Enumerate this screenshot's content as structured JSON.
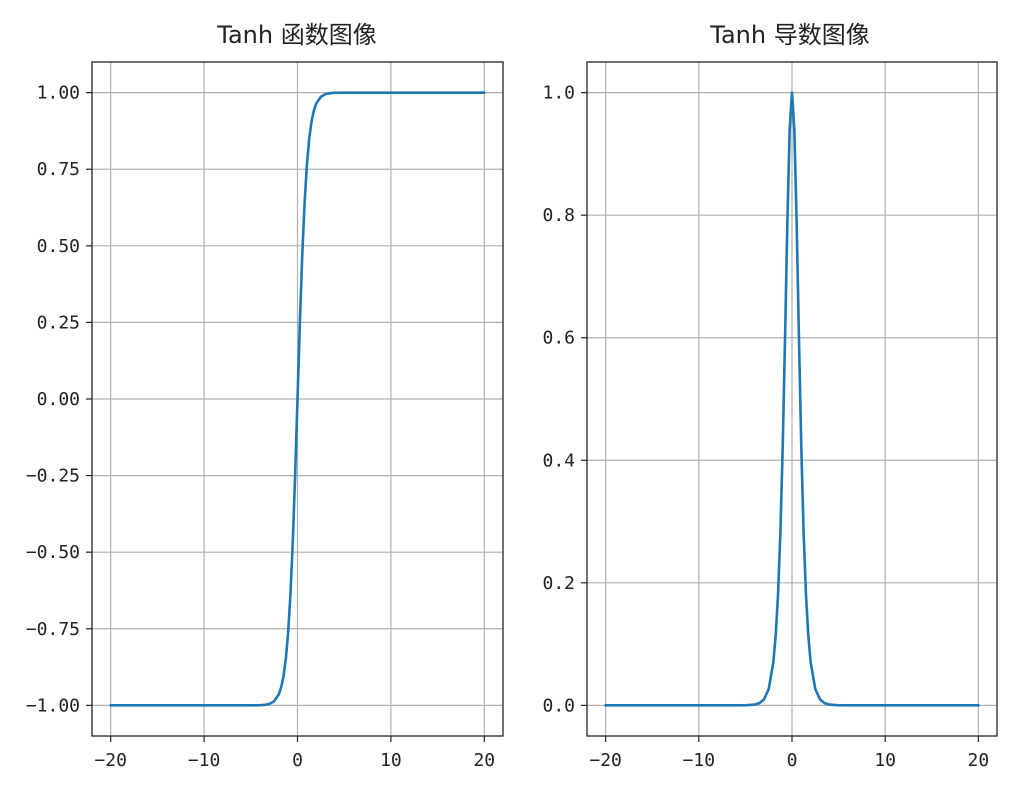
{
  "chart_data": [
    {
      "type": "line",
      "title": "Tanh 函数图像",
      "xlim": [
        -22,
        22
      ],
      "ylim": [
        -1.1,
        1.1
      ],
      "xticks": [
        -20,
        -10,
        0,
        10,
        20
      ],
      "xtick_labels": [
        "−20",
        "−10",
        "0",
        "10",
        "20"
      ],
      "yticks": [
        -1.0,
        -0.75,
        -0.5,
        -0.25,
        0.0,
        0.25,
        0.5,
        0.75,
        1.0
      ],
      "ytick_labels": [
        "−1.00",
        "−0.75",
        "−0.50",
        "−0.25",
        "0.00",
        "0.25",
        "0.50",
        "0.75",
        "1.00"
      ],
      "grid": true,
      "color": "#1f77b4",
      "series": [
        {
          "x": [
            -20,
            -8,
            -6,
            -5,
            -4,
            -3.5,
            -3,
            -2.5,
            -2,
            -1.75,
            -1.5,
            -1.25,
            -1,
            -0.75,
            -0.5,
            -0.25,
            0,
            0.25,
            0.5,
            0.75,
            1,
            1.25,
            1.5,
            1.75,
            2,
            2.5,
            3,
            3.5,
            4,
            5,
            6,
            8,
            20
          ],
          "y": [
            -1.0,
            -1.0,
            -0.99999,
            -0.99991,
            -0.99933,
            -0.99818,
            -0.99505,
            -0.98661,
            -0.96403,
            -0.94138,
            -0.90515,
            -0.84828,
            -0.76159,
            -0.63515,
            -0.46212,
            -0.24492,
            0.0,
            0.24492,
            0.46212,
            0.63515,
            0.76159,
            0.84828,
            0.90515,
            0.94138,
            0.96403,
            0.98661,
            0.99505,
            0.99818,
            0.99933,
            0.99991,
            0.99999,
            1.0,
            1.0
          ]
        }
      ]
    },
    {
      "type": "line",
      "title": "Tanh 导数图像",
      "xlim": [
        -22,
        22
      ],
      "ylim": [
        -0.05,
        1.05
      ],
      "xticks": [
        -20,
        -10,
        0,
        10,
        20
      ],
      "xtick_labels": [
        "−20",
        "−10",
        "0",
        "10",
        "20"
      ],
      "yticks": [
        0.0,
        0.2,
        0.4,
        0.6,
        0.8,
        1.0
      ],
      "ytick_labels": [
        "0.0",
        "0.2",
        "0.4",
        "0.6",
        "0.8",
        "1.0"
      ],
      "grid": true,
      "color": "#1f77b4",
      "series": [
        {
          "x": [
            -20,
            -8,
            -6,
            -5,
            -4,
            -3.5,
            -3,
            -2.5,
            -2,
            -1.75,
            -1.5,
            -1.25,
            -1,
            -0.75,
            -0.5,
            -0.25,
            0,
            0.25,
            0.5,
            0.75,
            1,
            1.25,
            1.5,
            1.75,
            2,
            2.5,
            3,
            3.5,
            4,
            5,
            6,
            8,
            20
          ],
          "y": [
            0.0,
            0.0,
            2e-05,
            0.00018,
            0.00134,
            0.00364,
            0.00987,
            0.02659,
            0.07065,
            0.1138,
            0.18071,
            0.28042,
            0.41997,
            0.59659,
            0.78645,
            0.94001,
            1.0,
            0.94001,
            0.78645,
            0.59659,
            0.41997,
            0.28042,
            0.18071,
            0.1138,
            0.07065,
            0.02659,
            0.00987,
            0.00364,
            0.00134,
            0.00018,
            2e-05,
            0.0,
            0.0
          ]
        }
      ]
    }
  ]
}
